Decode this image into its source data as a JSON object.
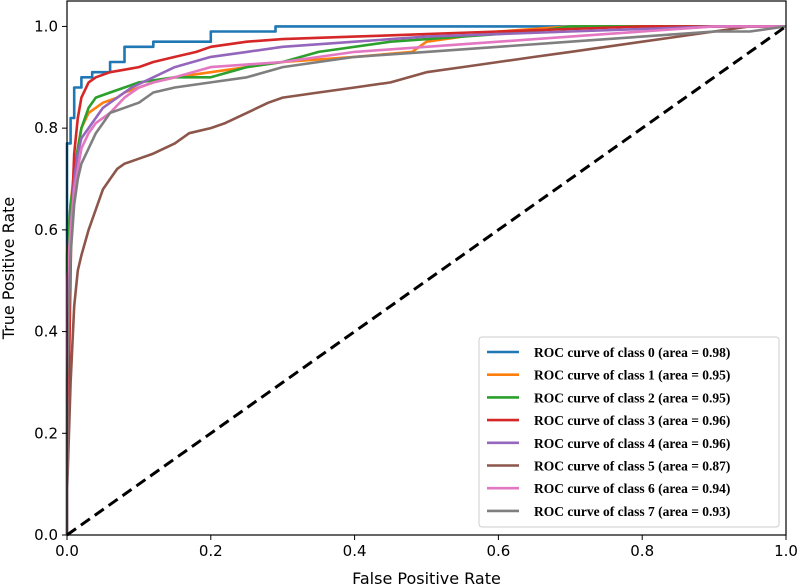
{
  "chart_data": {
    "type": "line",
    "title": "",
    "xlabel": "False Positive Rate",
    "ylabel": "True Positive Rate",
    "xlim": [
      0.0,
      1.0
    ],
    "ylim": [
      0.0,
      1.05
    ],
    "xticks": [
      0.0,
      0.2,
      0.4,
      0.6,
      0.8,
      1.0
    ],
    "yticks": [
      0.0,
      0.2,
      0.4,
      0.6,
      0.8,
      1.0
    ],
    "xtick_labels": [
      "0.0",
      "0.2",
      "0.4",
      "0.6",
      "0.8",
      "1.0"
    ],
    "ytick_labels": [
      "0.0",
      "0.2",
      "0.4",
      "0.6",
      "0.8",
      "1.0"
    ],
    "grid": false,
    "legend_position": "lower-right",
    "series": [
      {
        "name": "ROC curve of class 0 (area = 0.98)",
        "color": "#1f77b4",
        "x": [
          0.0,
          0.0,
          0.005,
          0.005,
          0.01,
          0.01,
          0.02,
          0.02,
          0.035,
          0.035,
          0.06,
          0.06,
          0.08,
          0.08,
          0.12,
          0.12,
          0.2,
          0.2,
          0.29,
          0.29,
          1.0
        ],
        "y": [
          0.0,
          0.77,
          0.77,
          0.82,
          0.82,
          0.88,
          0.88,
          0.9,
          0.9,
          0.91,
          0.91,
          0.93,
          0.93,
          0.96,
          0.96,
          0.97,
          0.97,
          0.99,
          0.99,
          1.0,
          1.0
        ]
      },
      {
        "name": "ROC curve of class 1 (area = 0.95)",
        "color": "#ff7f0e",
        "x": [
          0.0,
          0.0,
          0.005,
          0.01,
          0.015,
          0.02,
          0.03,
          0.05,
          0.07,
          0.08,
          0.1,
          0.12,
          0.15,
          0.2,
          0.3,
          0.4,
          0.48,
          0.5,
          0.55,
          0.6,
          0.7,
          0.8,
          0.9,
          1.0
        ],
        "y": [
          0.0,
          0.55,
          0.65,
          0.72,
          0.76,
          0.8,
          0.83,
          0.85,
          0.86,
          0.87,
          0.88,
          0.89,
          0.9,
          0.91,
          0.93,
          0.94,
          0.95,
          0.97,
          0.98,
          0.99,
          1.0,
          1.0,
          1.0,
          1.0
        ]
      },
      {
        "name": "ROC curve of class 2 (area = 0.95)",
        "color": "#2ca02c",
        "x": [
          0.0,
          0.0,
          0.005,
          0.01,
          0.015,
          0.02,
          0.03,
          0.04,
          0.06,
          0.08,
          0.1,
          0.15,
          0.2,
          0.25,
          0.3,
          0.35,
          0.45,
          0.55,
          0.65,
          0.7,
          0.8,
          1.0
        ],
        "y": [
          0.0,
          0.55,
          0.65,
          0.7,
          0.76,
          0.8,
          0.84,
          0.86,
          0.87,
          0.88,
          0.89,
          0.9,
          0.9,
          0.92,
          0.93,
          0.95,
          0.97,
          0.98,
          0.99,
          1.0,
          1.0,
          1.0
        ]
      },
      {
        "name": "ROC curve of class 3 (area = 0.96)",
        "color": "#d62728",
        "x": [
          0.0,
          0.0,
          0.003,
          0.006,
          0.01,
          0.015,
          0.02,
          0.03,
          0.04,
          0.06,
          0.08,
          0.1,
          0.12,
          0.15,
          0.18,
          0.2,
          0.25,
          0.3,
          0.4,
          0.5,
          0.6,
          0.7,
          0.8,
          0.9,
          1.0
        ],
        "y": [
          0.0,
          0.15,
          0.35,
          0.6,
          0.75,
          0.82,
          0.86,
          0.89,
          0.9,
          0.91,
          0.915,
          0.92,
          0.93,
          0.94,
          0.95,
          0.96,
          0.97,
          0.975,
          0.98,
          0.985,
          0.99,
          0.995,
          1.0,
          1.0,
          1.0
        ]
      },
      {
        "name": "ROC curve of class 4 (area = 0.96)",
        "color": "#9467bd",
        "x": [
          0.0,
          0.0,
          0.005,
          0.01,
          0.015,
          0.02,
          0.03,
          0.05,
          0.07,
          0.09,
          0.12,
          0.15,
          0.2,
          0.25,
          0.3,
          0.4,
          0.5,
          0.6,
          0.7,
          0.8,
          0.9,
          1.0
        ],
        "y": [
          0.0,
          0.4,
          0.6,
          0.7,
          0.75,
          0.78,
          0.8,
          0.84,
          0.86,
          0.88,
          0.9,
          0.92,
          0.94,
          0.95,
          0.96,
          0.97,
          0.98,
          0.985,
          0.99,
          0.995,
          1.0,
          1.0
        ]
      },
      {
        "name": "ROC curve of class 5 (area = 0.87)",
        "color": "#8c564b",
        "x": [
          0.0,
          0.0,
          0.005,
          0.01,
          0.015,
          0.02,
          0.03,
          0.04,
          0.05,
          0.06,
          0.07,
          0.08,
          0.1,
          0.12,
          0.15,
          0.17,
          0.2,
          0.22,
          0.25,
          0.28,
          0.3,
          0.35,
          0.4,
          0.45,
          0.5,
          0.55,
          0.6,
          0.65,
          0.7,
          0.75,
          0.8,
          0.85,
          0.9,
          0.95,
          1.0
        ],
        "y": [
          0.0,
          0.08,
          0.3,
          0.45,
          0.52,
          0.55,
          0.6,
          0.64,
          0.68,
          0.7,
          0.72,
          0.73,
          0.74,
          0.75,
          0.77,
          0.79,
          0.8,
          0.81,
          0.83,
          0.85,
          0.86,
          0.87,
          0.88,
          0.89,
          0.91,
          0.92,
          0.93,
          0.94,
          0.95,
          0.96,
          0.97,
          0.98,
          0.99,
          1.0,
          1.0
        ]
      },
      {
        "name": "ROC curve of class 6 (area = 0.94)",
        "color": "#e377c2",
        "x": [
          0.0,
          0.0,
          0.005,
          0.01,
          0.015,
          0.02,
          0.03,
          0.04,
          0.06,
          0.08,
          0.1,
          0.12,
          0.15,
          0.2,
          0.3,
          0.4,
          0.5,
          0.6,
          0.7,
          0.8,
          0.9,
          1.0
        ],
        "y": [
          0.0,
          0.5,
          0.6,
          0.68,
          0.72,
          0.76,
          0.79,
          0.81,
          0.83,
          0.86,
          0.88,
          0.89,
          0.9,
          0.92,
          0.93,
          0.95,
          0.96,
          0.97,
          0.98,
          0.99,
          1.0,
          1.0
        ]
      },
      {
        "name": "ROC curve of class 7 (area = 0.93)",
        "color": "#7f7f7f",
        "x": [
          0.0,
          0.0,
          0.005,
          0.01,
          0.015,
          0.02,
          0.03,
          0.04,
          0.05,
          0.06,
          0.08,
          0.1,
          0.12,
          0.15,
          0.2,
          0.25,
          0.3,
          0.35,
          0.4,
          0.5,
          0.6,
          0.7,
          0.8,
          0.9,
          0.95,
          1.0
        ],
        "y": [
          0.0,
          0.3,
          0.55,
          0.65,
          0.7,
          0.73,
          0.76,
          0.79,
          0.81,
          0.83,
          0.84,
          0.85,
          0.87,
          0.88,
          0.89,
          0.9,
          0.92,
          0.93,
          0.94,
          0.95,
          0.96,
          0.97,
          0.98,
          0.99,
          0.99,
          1.0
        ]
      },
      {
        "name": "",
        "color": "#000000",
        "style": "dashed",
        "x": [
          0.0,
          1.0
        ],
        "y": [
          0.0,
          1.0
        ]
      }
    ]
  }
}
